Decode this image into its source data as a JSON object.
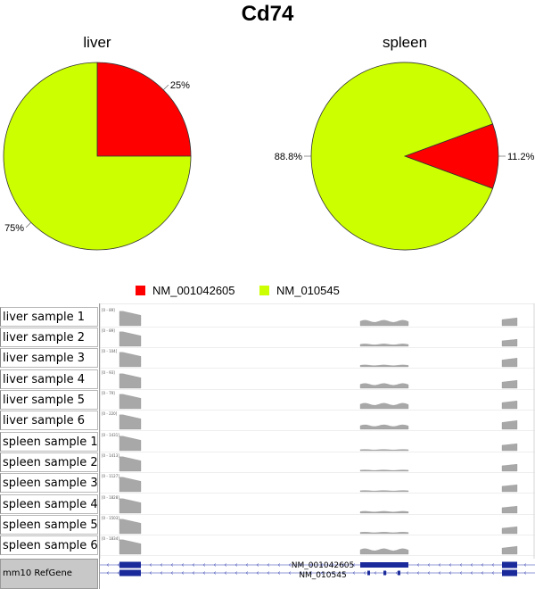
{
  "title": "Cd74",
  "chart_data": [
    {
      "type": "pie",
      "title": "liver",
      "slices": [
        {
          "name": "NM_001042605",
          "value": 25,
          "label": "25%",
          "color": "#ff0000"
        },
        {
          "name": "NM_010545",
          "value": 75,
          "label": "75%",
          "color": "#ccff00"
        }
      ]
    },
    {
      "type": "pie",
      "title": "spleen",
      "slices": [
        {
          "name": "NM_001042605",
          "value": 11.2,
          "label": "11.2%",
          "color": "#ff0000"
        },
        {
          "name": "NM_010545",
          "value": 88.8,
          "label": "88.8%",
          "color": "#ccff00"
        }
      ]
    }
  ],
  "legend": [
    {
      "name": "NM_001042605",
      "color": "#ff0000"
    },
    {
      "name": "NM_010545",
      "color": "#ccff00"
    }
  ],
  "browser": {
    "tracks": [
      {
        "label": "liver sample 1",
        "scale": "[0 - 89]",
        "mid": 0.35,
        "end": 0.45
      },
      {
        "label": "liver sample 2",
        "scale": "[0 - 89]",
        "mid": 0.15,
        "end": 0.4
      },
      {
        "label": "liver sample 3",
        "scale": "[0 - 104]",
        "mid": 0.12,
        "end": 0.5
      },
      {
        "label": "liver sample 4",
        "scale": "[0 - 93]",
        "mid": 0.3,
        "end": 0.45
      },
      {
        "label": "liver sample 5",
        "scale": "[0 - 79]",
        "mid": 0.35,
        "end": 0.45
      },
      {
        "label": "liver sample 6",
        "scale": "[0 - 220]",
        "mid": 0.28,
        "end": 0.5
      },
      {
        "label": "spleen sample 1",
        "scale": "[0 - 1431]",
        "mid": 0.08,
        "end": 0.4
      },
      {
        "label": "spleen sample 2",
        "scale": "[0 - 1413]",
        "mid": 0.08,
        "end": 0.4
      },
      {
        "label": "spleen sample 3",
        "scale": "[0 - 1127]",
        "mid": 0.08,
        "end": 0.4
      },
      {
        "label": "spleen sample 4",
        "scale": "[0 - 1828]",
        "mid": 0.12,
        "end": 0.4
      },
      {
        "label": "spleen sample 5",
        "scale": "[0 - 1503]",
        "mid": 0.1,
        "end": 0.4
      },
      {
        "label": "spleen sample 6",
        "scale": "[0 - 1834]",
        "mid": 0.35,
        "end": 0.45
      }
    ],
    "gene_track_label": "mm10 RefGene",
    "transcripts": [
      "NM_001042605",
      "NM_010545"
    ]
  }
}
